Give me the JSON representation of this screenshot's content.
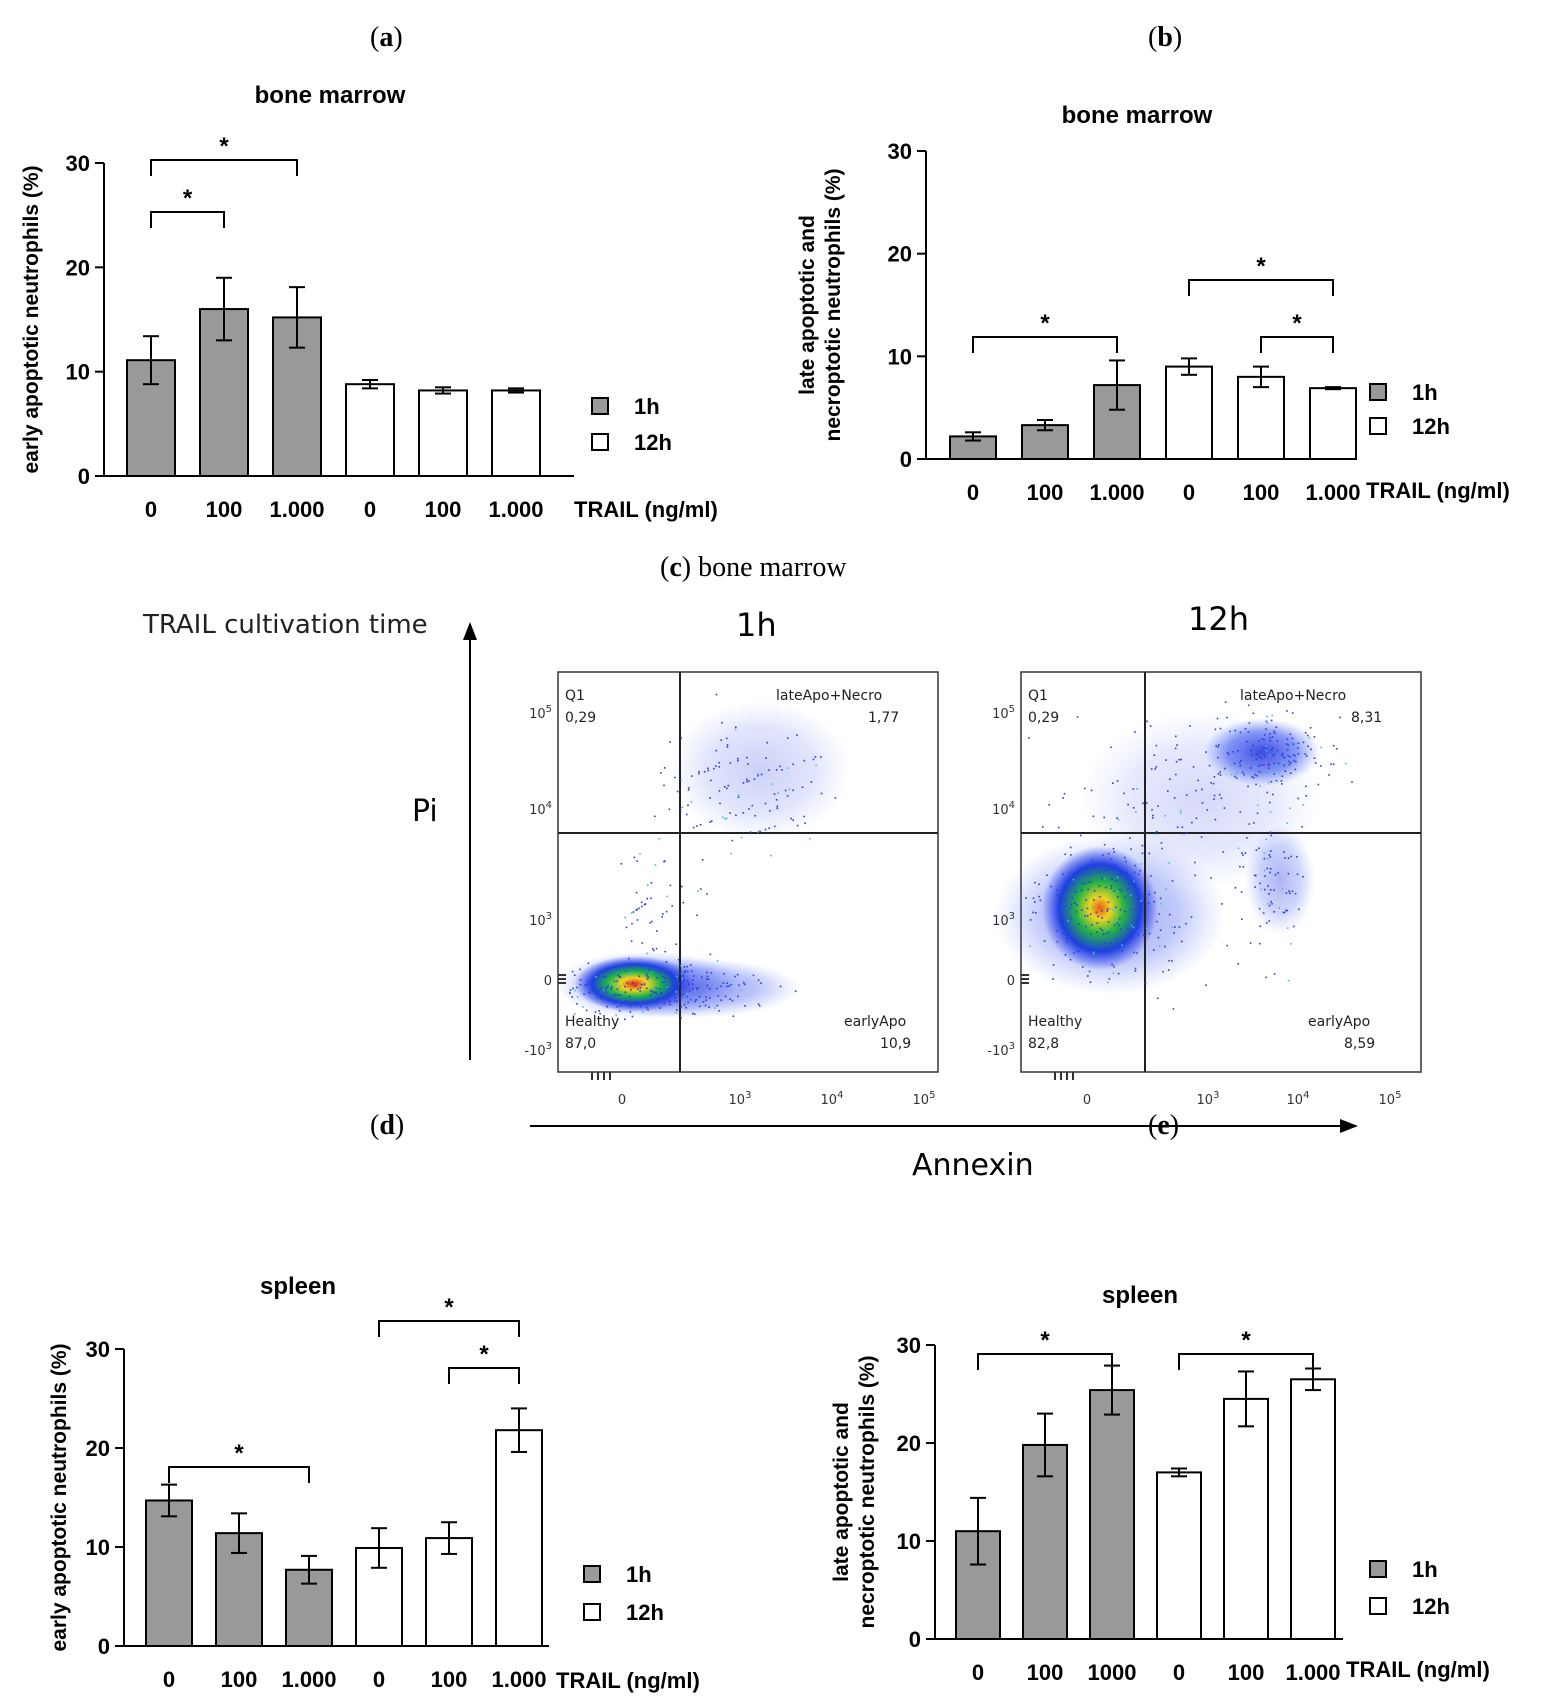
{
  "panel_labels": {
    "a": "a",
    "b": "b",
    "c": "c",
    "c_suffix": " bone marrow",
    "d": "d",
    "e": "e"
  },
  "colors": {
    "bar_1h": "#999999",
    "bar_12h": "#ffffff",
    "stroke": "#000000"
  },
  "legend": {
    "g1": "1h",
    "g2": "12h"
  },
  "chart_data": [
    {
      "id": "a",
      "type": "bar",
      "title": "bone marrow",
      "ylabel": "early apoptotic neutrophils (%)",
      "xlabel": "TRAIL (ng/ml)",
      "categories": [
        "0",
        "100",
        "1.000",
        "0",
        "100",
        "1.000"
      ],
      "groups": [
        "1h",
        "1h",
        "1h",
        "12h",
        "12h",
        "12h"
      ],
      "values": [
        11.1,
        16.0,
        15.2,
        8.8,
        8.2,
        8.2
      ],
      "errors": [
        2.3,
        3.0,
        2.9,
        0.4,
        0.3,
        0.2
      ],
      "ylim": [
        0,
        30
      ],
      "yticks": [
        "0",
        "10",
        "20",
        "30"
      ],
      "significance": [
        {
          "from": 0,
          "to": 1,
          "label": "*"
        },
        {
          "from": 0,
          "to": 2,
          "label": "*"
        }
      ]
    },
    {
      "id": "b",
      "type": "bar",
      "title": "bone marrow",
      "ylabel": "late apoptotic and necroptotic neutrophils (%)",
      "ylabel_lines": [
        "late apoptotic and",
        "necroptotic neutrophils (%)"
      ],
      "xlabel": "TRAIL (ng/ml)",
      "categories": [
        "0",
        "100",
        "1.000",
        "0",
        "100",
        "1.000"
      ],
      "groups": [
        "1h",
        "1h",
        "1h",
        "12h",
        "12h",
        "12h"
      ],
      "values": [
        2.2,
        3.3,
        7.2,
        9.0,
        8.0,
        6.9
      ],
      "errors": [
        0.4,
        0.5,
        2.4,
        0.8,
        1.0,
        0.1
      ],
      "ylim": [
        0,
        30
      ],
      "yticks": [
        "0",
        "10",
        "20",
        "30"
      ],
      "significance": [
        {
          "from": 0,
          "to": 2,
          "label": "*"
        },
        {
          "from": 3,
          "to": 5,
          "label": "*"
        },
        {
          "from": 4,
          "to": 5,
          "label": "*"
        }
      ]
    },
    {
      "id": "d",
      "type": "bar",
      "title": "spleen",
      "ylabel": "early apoptotic neutrophils (%)",
      "xlabel": "TRAIL (ng/ml)",
      "categories": [
        "0",
        "100",
        "1.000",
        "0",
        "100",
        "1.000"
      ],
      "groups": [
        "1h",
        "1h",
        "1h",
        "12h",
        "12h",
        "12h"
      ],
      "values": [
        14.7,
        11.4,
        7.7,
        9.9,
        10.9,
        21.8
      ],
      "errors": [
        1.6,
        2.0,
        1.4,
        2.0,
        1.6,
        2.2
      ],
      "ylim": [
        0,
        30
      ],
      "yticks": [
        "0",
        "10",
        "20",
        "30"
      ],
      "significance": [
        {
          "from": 0,
          "to": 2,
          "label": "*"
        },
        {
          "from": 3,
          "to": 5,
          "label": "*"
        },
        {
          "from": 4,
          "to": 5,
          "label": "*"
        }
      ]
    },
    {
      "id": "e",
      "type": "bar",
      "title": "spleen",
      "ylabel": "late apoptotic and necroptotic neutrophils (%)",
      "ylabel_lines": [
        "late apoptotic and",
        "necroptotic neutrophils (%)"
      ],
      "xlabel": "TRAIL (ng/ml)",
      "categories": [
        "0",
        "100",
        "1000",
        "0",
        "100",
        "1.000"
      ],
      "groups": [
        "1h",
        "1h",
        "1h",
        "12h",
        "12h",
        "12h"
      ],
      "values": [
        11.0,
        19.8,
        25.4,
        17.0,
        24.5,
        26.5
      ],
      "errors": [
        3.4,
        3.2,
        2.5,
        0.4,
        2.8,
        1.1
      ],
      "ylim": [
        0,
        30
      ],
      "yticks": [
        "0",
        "10",
        "20",
        "30"
      ],
      "significance": [
        {
          "from": 0,
          "to": 2,
          "label": "*"
        },
        {
          "from": 3,
          "to": 5,
          "label": "*"
        }
      ]
    },
    {
      "id": "c",
      "type": "scatter",
      "row_label": "TRAIL cultivation time",
      "ylabel": "Pi",
      "xlabel": "Annexin",
      "axis_ticks": [
        "-10^3",
        "0",
        "10^3",
        "10^4",
        "10^5"
      ],
      "plots": [
        {
          "title": "1h",
          "quadrants": {
            "Q1": "0,29",
            "lateApo+Necro": "1,77",
            "Healthy": "87,0",
            "earlyApo": "10,9"
          }
        },
        {
          "title": "12h",
          "quadrants": {
            "Q1": "0,29",
            "lateApo+Necro": "8,31",
            "Healthy": "82,8",
            "earlyApo": "8,59"
          }
        }
      ]
    }
  ],
  "flow_labels": {
    "row_label": "TRAIL cultivation time",
    "pi": "Pi",
    "annexin": "Annexin",
    "t1": "1h",
    "t2": "12h",
    "p1": {
      "q1": "Q1",
      "q1v": "0,29",
      "q2": "lateApo+Necro",
      "q2v": "1,77",
      "q3": "Healthy",
      "q3v": "87,0",
      "q4": "earlyApo",
      "q4v": "10,9"
    },
    "p2": {
      "q1": "Q1",
      "q1v": "0,29",
      "q2": "lateApo+Necro",
      "q2v": "8,31",
      "q3": "Healthy",
      "q3v": "82,8",
      "q4": "earlyApo",
      "q4v": "8,59"
    }
  }
}
